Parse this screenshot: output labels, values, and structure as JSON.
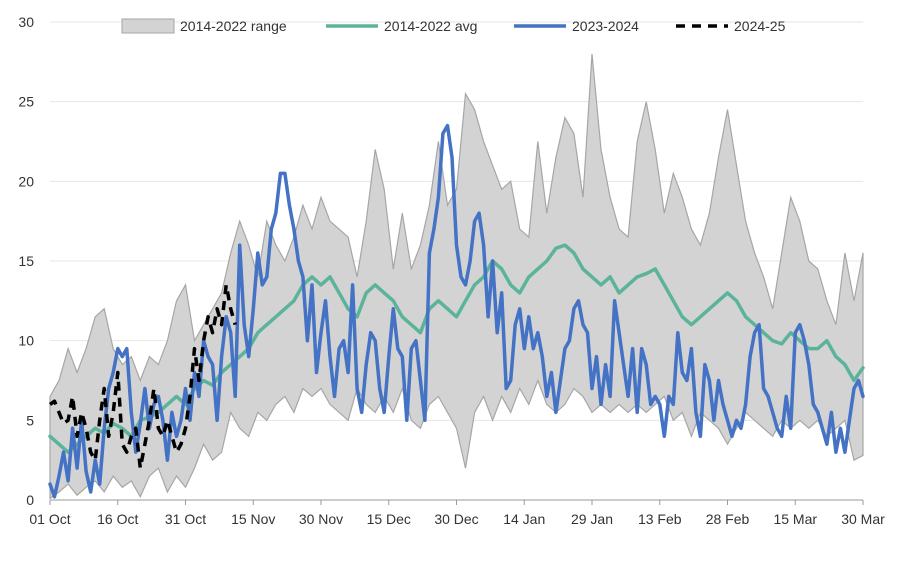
{
  "chart_data": {
    "type": "line",
    "title": "",
    "xlabel": "",
    "ylabel": "",
    "ylim": [
      0,
      30
    ],
    "yticks": [
      0,
      5,
      10,
      15,
      20,
      25,
      30
    ],
    "xticks": [
      {
        "day": 0,
        "label": "01 Oct"
      },
      {
        "day": 15,
        "label": "16 Oct"
      },
      {
        "day": 30,
        "label": "31 Oct"
      },
      {
        "day": 45,
        "label": "15 Nov"
      },
      {
        "day": 60,
        "label": "30 Nov"
      },
      {
        "day": 75,
        "label": "15 Dec"
      },
      {
        "day": 90,
        "label": "30 Dec"
      },
      {
        "day": 105,
        "label": "14 Jan"
      },
      {
        "day": 120,
        "label": "29 Jan"
      },
      {
        "day": 135,
        "label": "13 Feb"
      },
      {
        "day": 150,
        "label": "28 Feb"
      },
      {
        "day": 165,
        "label": "15 Mar"
      },
      {
        "day": 180,
        "label": "30 Mar"
      }
    ],
    "x_range": [
      0,
      180
    ],
    "grid": true,
    "legend_position": "top",
    "legend": [
      {
        "label": "2014-2022 range",
        "type": "area",
        "color": "#d3d3d3"
      },
      {
        "label": "2014-2022 avg",
        "type": "line",
        "color": "#5bb39b"
      },
      {
        "label": "2023-2024",
        "type": "line",
        "color": "#4472c4"
      },
      {
        "label": "2024-25",
        "type": "dashed",
        "color": "#000000"
      }
    ],
    "series": [
      {
        "name": "2014-2022 range",
        "kind": "range",
        "color": "#d3d3d3",
        "x": [
          0,
          2,
          4,
          6,
          8,
          10,
          12,
          14,
          16,
          18,
          20,
          22,
          24,
          26,
          28,
          30,
          32,
          34,
          36,
          38,
          40,
          42,
          44,
          46,
          48,
          50,
          52,
          54,
          56,
          58,
          60,
          62,
          64,
          66,
          68,
          70,
          72,
          74,
          76,
          78,
          80,
          82,
          84,
          86,
          88,
          90,
          92,
          94,
          96,
          98,
          100,
          102,
          104,
          106,
          108,
          110,
          112,
          114,
          116,
          118,
          120,
          122,
          124,
          126,
          128,
          130,
          132,
          134,
          136,
          138,
          140,
          142,
          144,
          146,
          148,
          150,
          152,
          154,
          156,
          158,
          160,
          162,
          164,
          166,
          168,
          170,
          172,
          174,
          176,
          178,
          180
        ],
        "low": [
          0.1,
          0.5,
          1.0,
          0.3,
          0.8,
          1.2,
          0.5,
          1.5,
          0.8,
          1.2,
          0.2,
          1.5,
          2.0,
          0.5,
          1.5,
          0.8,
          2.0,
          3.5,
          2.5,
          3.0,
          5.5,
          4.5,
          4.0,
          5.5,
          5.0,
          6.0,
          6.5,
          5.5,
          7.0,
          6.5,
          7.0,
          6.0,
          5.5,
          5.0,
          7.0,
          6.0,
          5.5,
          6.5,
          5.5,
          7.0,
          5.0,
          4.5,
          6.0,
          6.5,
          5.5,
          4.5,
          2.0,
          5.5,
          6.5,
          5.0,
          6.5,
          5.5,
          7.0,
          6.0,
          7.5,
          6.0,
          5.5,
          6.0,
          7.0,
          6.5,
          5.5,
          6.0,
          5.5,
          6.0,
          5.5,
          6.0,
          5.5,
          6.0,
          6.5,
          5.0,
          5.5,
          4.0,
          5.5,
          5.0,
          4.5,
          3.5,
          4.5,
          5.5,
          5.0,
          4.5,
          4.0,
          5.0,
          4.5,
          5.0,
          4.5,
          5.0,
          4.0,
          4.5,
          5.0,
          2.5,
          2.8
        ],
        "high": [
          6.5,
          7.5,
          9.5,
          8.0,
          9.5,
          11.5,
          12.0,
          9.5,
          8.5,
          9.0,
          7.5,
          9.0,
          8.5,
          10.0,
          12.5,
          13.5,
          10.0,
          11.0,
          12.0,
          13.0,
          15.5,
          17.5,
          16.0,
          14.0,
          17.5,
          16.0,
          15.0,
          16.5,
          18.5,
          17.0,
          19.0,
          17.5,
          17.0,
          16.5,
          14.0,
          17.5,
          22.0,
          19.5,
          14.5,
          18.0,
          14.5,
          16.0,
          18.5,
          22.5,
          18.5,
          19.5,
          25.5,
          24.5,
          22.5,
          21.0,
          19.5,
          20.0,
          17.0,
          16.5,
          22.5,
          18.0,
          21.5,
          24.0,
          23.0,
          19.0,
          28.0,
          22.0,
          19.0,
          17.0,
          16.5,
          22.5,
          25.0,
          22.0,
          18.0,
          20.5,
          19.0,
          17.0,
          16.0,
          18.0,
          21.5,
          24.5,
          21.0,
          17.5,
          15.5,
          14.0,
          12.0,
          15.5,
          19.0,
          17.5,
          15.0,
          14.5,
          12.5,
          11.0,
          15.5,
          12.5,
          15.5
        ]
      },
      {
        "name": "2014-2022 avg",
        "kind": "line",
        "color": "#5bb39b",
        "x": [
          0,
          2,
          4,
          6,
          8,
          10,
          12,
          14,
          16,
          18,
          20,
          22,
          24,
          26,
          28,
          30,
          32,
          34,
          36,
          38,
          40,
          42,
          44,
          46,
          48,
          50,
          52,
          54,
          56,
          58,
          60,
          62,
          64,
          66,
          68,
          70,
          72,
          74,
          76,
          78,
          80,
          82,
          84,
          86,
          88,
          90,
          92,
          94,
          96,
          98,
          100,
          102,
          104,
          106,
          108,
          110,
          112,
          114,
          116,
          118,
          120,
          122,
          124,
          126,
          128,
          130,
          132,
          134,
          136,
          138,
          140,
          142,
          144,
          146,
          148,
          150,
          152,
          154,
          156,
          158,
          160,
          162,
          164,
          166,
          168,
          170,
          172,
          174,
          176,
          178,
          180
        ],
        "values": [
          4.0,
          3.5,
          3.0,
          3.5,
          4.0,
          4.5,
          4.2,
          4.8,
          4.5,
          4.0,
          5.0,
          5.2,
          5.5,
          6.0,
          6.5,
          6.0,
          7.0,
          7.5,
          7.2,
          8.0,
          8.5,
          9.0,
          9.5,
          10.5,
          11.0,
          11.5,
          12.0,
          12.5,
          13.5,
          14.0,
          13.5,
          14.0,
          13.0,
          12.0,
          11.5,
          13.0,
          13.5,
          13.0,
          12.5,
          11.5,
          11.0,
          10.5,
          12.0,
          12.5,
          12.0,
          11.5,
          12.5,
          13.5,
          14.0,
          15.0,
          14.5,
          13.5,
          13.0,
          14.0,
          14.5,
          15.0,
          15.8,
          16.0,
          15.5,
          14.5,
          14.0,
          13.5,
          14.0,
          13.0,
          13.5,
          14.0,
          14.2,
          14.5,
          13.5,
          12.5,
          11.5,
          11.0,
          11.5,
          12.0,
          12.5,
          13.0,
          12.5,
          11.5,
          11.0,
          10.5,
          10.0,
          9.8,
          10.5,
          10.0,
          9.5,
          9.5,
          10.0,
          9.0,
          8.5,
          7.5,
          8.3
        ]
      },
      {
        "name": "2023-2024",
        "kind": "line",
        "color": "#4472c4",
        "x": [
          0,
          1,
          2,
          3,
          4,
          5,
          6,
          7,
          8,
          9,
          10,
          11,
          12,
          13,
          14,
          15,
          16,
          17,
          18,
          19,
          20,
          21,
          22,
          23,
          24,
          25,
          26,
          27,
          28,
          29,
          30,
          31,
          32,
          33,
          34,
          35,
          36,
          37,
          38,
          39,
          40,
          41,
          42,
          43,
          44,
          45,
          46,
          47,
          48,
          49,
          50,
          51,
          52,
          53,
          54,
          55,
          56,
          57,
          58,
          59,
          60,
          61,
          62,
          63,
          64,
          65,
          66,
          67,
          68,
          69,
          70,
          71,
          72,
          73,
          74,
          75,
          76,
          77,
          78,
          79,
          80,
          81,
          82,
          83,
          84,
          85,
          86,
          87,
          88,
          89,
          90,
          91,
          92,
          93,
          94,
          95,
          96,
          97,
          98,
          99,
          100,
          101,
          102,
          103,
          104,
          105,
          106,
          107,
          108,
          109,
          110,
          111,
          112,
          113,
          114,
          115,
          116,
          117,
          118,
          119,
          120,
          121,
          122,
          123,
          124,
          125,
          126,
          127,
          128,
          129,
          130,
          131,
          132,
          133,
          134,
          135,
          136,
          137,
          138,
          139,
          140,
          141,
          142,
          143,
          144,
          145,
          146,
          147,
          148,
          149,
          150,
          151,
          152,
          153,
          154,
          155,
          156,
          157,
          158,
          159,
          160,
          161,
          162,
          163,
          164,
          165,
          166,
          167,
          168,
          169,
          170,
          171,
          172,
          173,
          174,
          175,
          176,
          177,
          178,
          179,
          180
        ],
        "values": [
          1.0,
          0.2,
          1.5,
          3.0,
          1.2,
          4.5,
          2.0,
          5.0,
          1.8,
          0.5,
          2.5,
          1.0,
          4.5,
          7.0,
          8.0,
          9.5,
          9.0,
          9.5,
          5.5,
          3.0,
          4.8,
          7.0,
          4.5,
          6.0,
          6.5,
          5.0,
          2.5,
          5.5,
          4.0,
          5.0,
          7.0,
          5.0,
          8.0,
          6.5,
          10.0,
          9.0,
          8.5,
          5.0,
          9.0,
          11.5,
          10.5,
          6.5,
          16.0,
          11.0,
          9.0,
          12.0,
          15.5,
          13.5,
          14.0,
          17.0,
          18.0,
          20.5,
          20.5,
          18.5,
          17.0,
          15.0,
          14.0,
          10.0,
          13.5,
          8.0,
          10.5,
          12.5,
          9.0,
          6.5,
          9.5,
          10.0,
          8.0,
          13.5,
          7.0,
          5.5,
          8.5,
          10.5,
          10.0,
          7.0,
          5.5,
          9.0,
          12.0,
          9.5,
          9.0,
          5.0,
          9.5,
          10.0,
          7.5,
          5.0,
          15.5,
          17.0,
          19.0,
          23.0,
          23.5,
          21.5,
          16.0,
          14.0,
          13.5,
          15.0,
          17.5,
          18.0,
          16.0,
          11.5,
          15.0,
          10.5,
          13.0,
          7.0,
          7.5,
          11.0,
          12.0,
          9.5,
          11.5,
          9.5,
          10.5,
          9.0,
          6.5,
          8.0,
          5.5,
          7.5,
          9.5,
          10.0,
          12.0,
          12.5,
          11.0,
          10.5,
          7.0,
          9.0,
          6.0,
          8.5,
          6.5,
          12.5,
          10.5,
          8.5,
          6.5,
          9.5,
          5.5,
          9.5,
          8.5,
          6.0,
          6.5,
          6.0,
          4.0,
          6.5,
          6.0,
          10.5,
          8.0,
          7.5,
          9.5,
          5.5,
          4.0,
          8.5,
          7.5,
          5.0,
          7.5,
          6.0,
          5.0,
          4.0,
          5.0,
          4.5,
          6.0,
          9.0,
          10.5,
          11.0,
          7.0,
          6.5,
          5.5,
          4.5,
          4.0,
          6.5,
          4.5,
          10.5,
          11.0,
          10.0,
          8.5,
          6.0,
          5.5,
          4.5,
          3.5,
          5.5,
          3.0,
          4.5,
          3.0,
          5.0,
          7.0,
          7.5,
          6.5
        ]
      },
      {
        "name": "2024-25",
        "kind": "dashed",
        "color": "#000000",
        "x": [
          0,
          1,
          2,
          3,
          4,
          5,
          6,
          7,
          8,
          9,
          10,
          11,
          12,
          13,
          14,
          15,
          16,
          17,
          18,
          19,
          20,
          21,
          22,
          23,
          24,
          25,
          26,
          27,
          28,
          29,
          30,
          31,
          32,
          33,
          34,
          35,
          36,
          37,
          38,
          39,
          40,
          41
        ],
        "values": [
          6.0,
          6.2,
          5.5,
          4.8,
          5.0,
          6.5,
          4.0,
          5.5,
          4.5,
          3.0,
          2.5,
          5.0,
          7.0,
          4.0,
          5.5,
          8.0,
          3.5,
          3.0,
          4.0,
          4.5,
          2.0,
          3.5,
          5.0,
          7.0,
          4.5,
          4.0,
          5.0,
          4.0,
          3.0,
          3.5,
          4.5,
          6.5,
          9.5,
          7.5,
          10.0,
          11.5,
          10.5,
          12.0,
          11.0,
          13.5,
          12.0,
          11.0
        ]
      }
    ]
  }
}
